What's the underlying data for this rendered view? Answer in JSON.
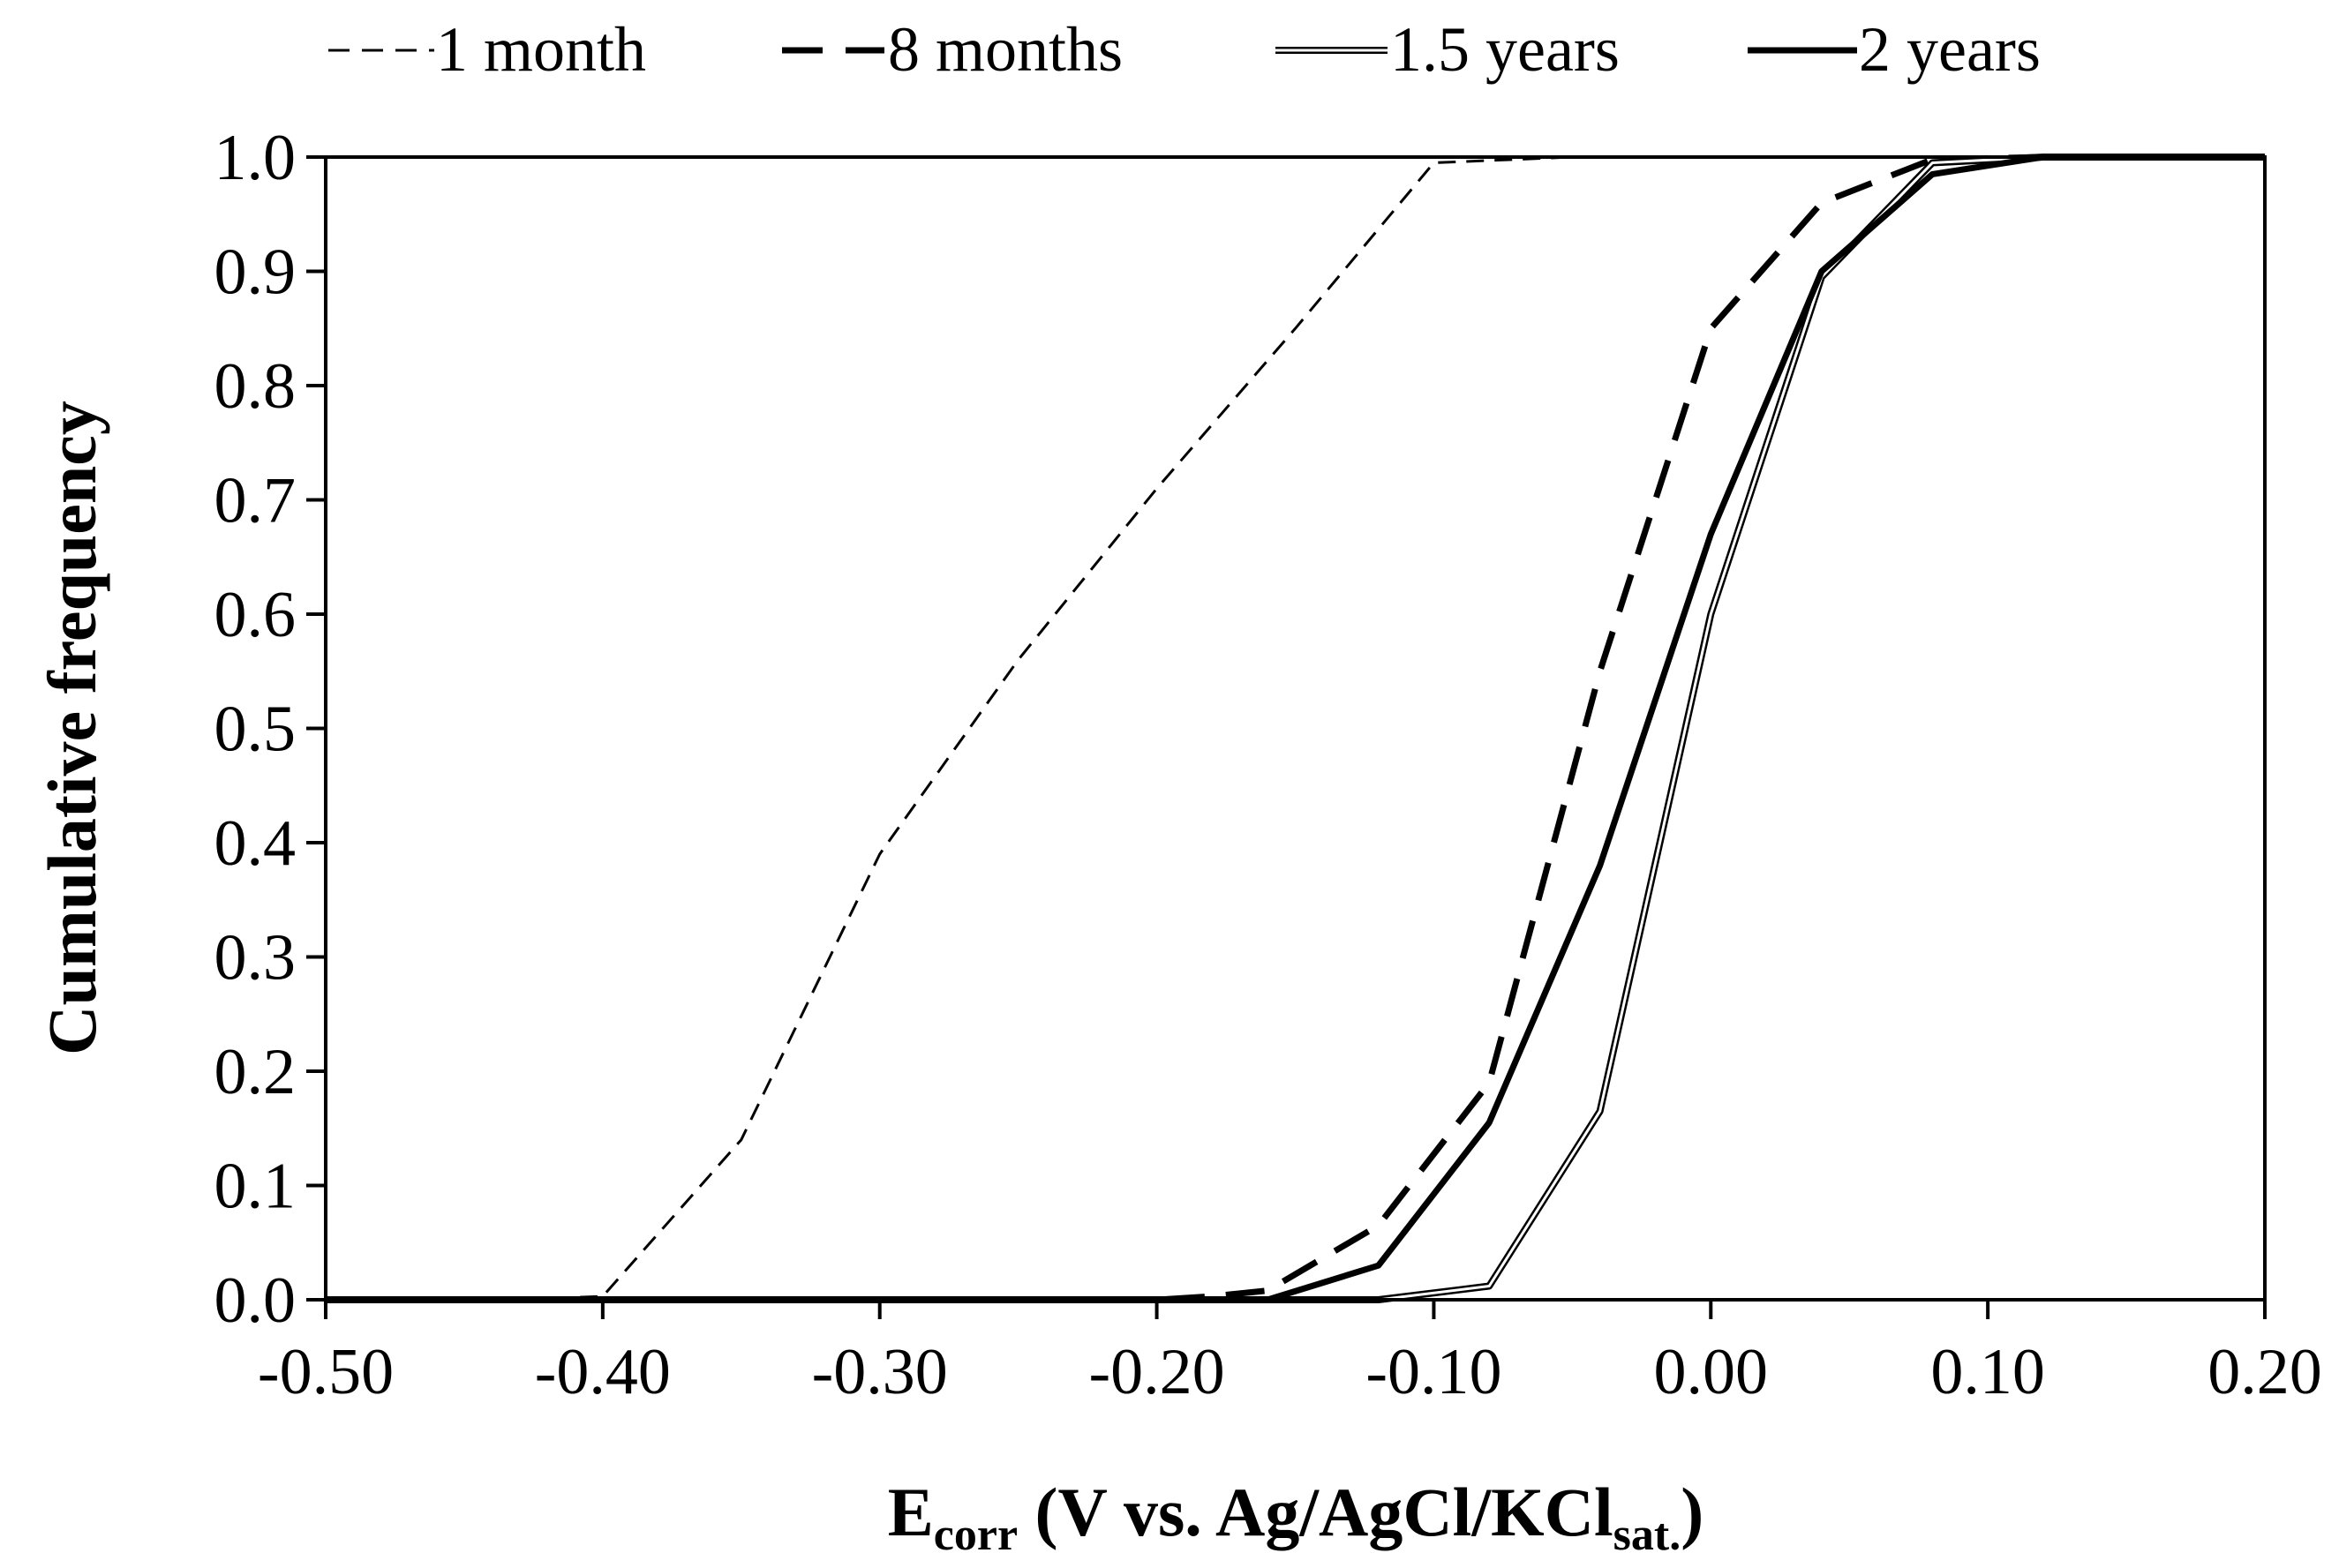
{
  "chart_data": {
    "type": "line",
    "title": "",
    "xlabel": {
      "main": "E",
      "sub": "corr",
      "rest": " (V vs. Ag/AgCl/KCl",
      "sub2": "sat.",
      "close": ")"
    },
    "ylabel": "Cumulative frequency",
    "xlim": [
      -0.5,
      0.2
    ],
    "ylim": [
      0.0,
      1.0
    ],
    "x_ticks": [
      -0.5,
      -0.4,
      -0.3,
      -0.2,
      -0.1,
      0.0,
      0.1,
      0.2
    ],
    "x_tick_labels": [
      "-0.50",
      "-0.40",
      "-0.30",
      "-0.20",
      "-0.10",
      "0.00",
      "0.10",
      "0.20"
    ],
    "y_ticks": [
      0.0,
      0.1,
      0.2,
      0.3,
      0.4,
      0.5,
      0.6,
      0.7,
      0.8,
      0.9,
      1.0
    ],
    "y_tick_labels": [
      "0.0",
      "0.1",
      "0.2",
      "0.3",
      "0.4",
      "0.5",
      "0.6",
      "0.7",
      "0.8",
      "0.9",
      "1.0"
    ],
    "grid": false,
    "legend_position": "top",
    "series": [
      {
        "name": "1 month",
        "style": "thin-dashed",
        "x": [
          -0.5,
          -0.43,
          -0.4,
          -0.35,
          -0.3,
          -0.25,
          -0.2,
          -0.15,
          -0.1,
          -0.07,
          -0.05
        ],
        "y": [
          0.0,
          0.0,
          0.003,
          0.14,
          0.39,
          0.56,
          0.71,
          0.85,
          0.995,
          0.998,
          1.0
        ]
      },
      {
        "name": "8 months",
        "style": "thick-dashed",
        "x": [
          -0.5,
          -0.2,
          -0.18,
          -0.16,
          -0.12,
          -0.08,
          -0.04,
          0.0,
          0.04,
          0.08,
          0.12,
          0.2
        ],
        "y": [
          0.0,
          0.0,
          0.003,
          0.008,
          0.065,
          0.19,
          0.55,
          0.85,
          0.96,
          0.998,
          1.0,
          1.0
        ]
      },
      {
        "name": "1.5 years",
        "style": "double",
        "x": [
          -0.5,
          -0.12,
          -0.08,
          -0.04,
          0.0,
          0.04,
          0.08,
          0.12,
          0.2
        ],
        "y": [
          0.0,
          0.0,
          0.012,
          0.165,
          0.6,
          0.895,
          0.995,
          1.0,
          1.0
        ]
      },
      {
        "name": "2 years",
        "style": "thick-solid",
        "x": [
          -0.5,
          -0.16,
          -0.12,
          -0.08,
          -0.04,
          0.0,
          0.04,
          0.08,
          0.12,
          0.2
        ],
        "y": [
          0.0,
          0.0,
          0.03,
          0.155,
          0.38,
          0.67,
          0.9,
          0.985,
          1.0,
          1.0
        ]
      }
    ]
  }
}
